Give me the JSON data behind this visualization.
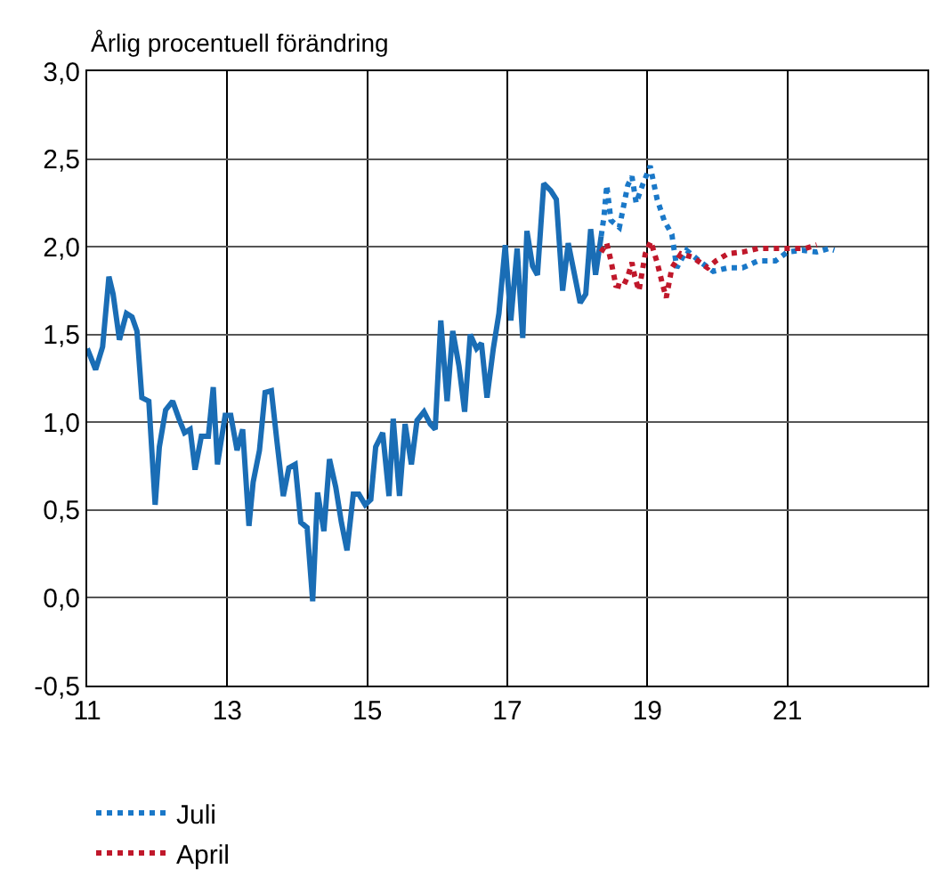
{
  "chart_data": {
    "type": "line",
    "subtitle": "Årlig procentuell förändring",
    "xlim": [
      11,
      23
    ],
    "xticks": [
      11,
      13,
      15,
      17,
      19,
      21
    ],
    "ylim": [
      -0.5,
      3.0
    ],
    "yticks": [
      {
        "value": -0.5,
        "label": "-0,5"
      },
      {
        "value": 0,
        "label": "0,0"
      },
      {
        "value": 0.5,
        "label": "0,5"
      },
      {
        "value": 1,
        "label": "1,0"
      },
      {
        "value": 1.5,
        "label": "1,5"
      },
      {
        "value": 2,
        "label": "2,0"
      },
      {
        "value": 2.5,
        "label": "2,5"
      },
      {
        "value": 3,
        "label": "3,0"
      }
    ],
    "grid": true,
    "legend": "bottom left",
    "marker": "none",
    "series": [
      {
        "color": "#1a6db5",
        "line_style": "solid",
        "x": [
          11.0,
          11.12,
          11.22,
          11.31,
          11.37,
          11.46,
          11.56,
          11.64,
          11.71,
          11.78,
          11.88,
          11.97,
          12.03,
          12.12,
          12.22,
          12.31,
          12.39,
          12.47,
          12.54,
          12.63,
          12.73,
          12.8,
          12.86,
          12.97,
          13.05,
          13.14,
          13.22,
          13.31,
          13.37,
          13.46,
          13.54,
          13.63,
          13.71,
          13.8,
          13.88,
          13.97,
          14.05,
          14.14,
          14.22,
          14.29,
          14.38,
          14.46,
          14.55,
          14.63,
          14.71,
          14.8,
          14.88,
          14.97,
          15.05,
          15.12,
          15.22,
          15.31,
          15.37,
          15.46,
          15.54,
          15.63,
          15.71,
          15.81,
          15.9,
          15.97,
          16.05,
          16.14,
          16.22,
          16.31,
          16.39,
          16.47,
          16.56,
          16.63,
          16.71,
          16.8,
          16.88,
          16.97,
          17.05,
          17.14,
          17.22,
          17.28,
          17.36,
          17.43,
          17.52,
          17.62,
          17.7,
          17.79,
          17.87,
          17.96,
          18.04,
          18.12,
          18.19,
          18.26,
          18.34
        ],
        "values": [
          1.42,
          1.3,
          1.43,
          1.83,
          1.73,
          1.47,
          1.62,
          1.6,
          1.52,
          1.14,
          1.12,
          0.53,
          0.86,
          1.07,
          1.12,
          1.02,
          0.94,
          0.96,
          0.73,
          0.92,
          0.92,
          1.2,
          0.76,
          1.04,
          1.04,
          0.84,
          0.96,
          0.41,
          0.66,
          0.84,
          1.17,
          1.18,
          0.89,
          0.58,
          0.74,
          0.76,
          0.43,
          0.4,
          -0.02,
          0.6,
          0.38,
          0.79,
          0.63,
          0.43,
          0.27,
          0.59,
          0.59,
          0.53,
          0.56,
          0.86,
          0.94,
          0.58,
          1.02,
          0.58,
          0.99,
          0.76,
          1.01,
          1.06,
          0.99,
          0.96,
          1.58,
          1.12,
          1.52,
          1.32,
          1.06,
          1.5,
          1.42,
          1.45,
          1.14,
          1.42,
          1.62,
          2.01,
          1.58,
          1.99,
          1.48,
          2.09,
          1.89,
          1.84,
          2.36,
          2.32,
          2.27,
          1.75,
          2.02,
          1.84,
          1.68,
          1.73,
          2.1,
          1.84,
          2.06
        ]
      },
      {
        "name": "Juli",
        "color": "#1a78c8",
        "line_style": "dotted",
        "x": [
          18.34,
          18.38,
          18.42,
          18.48,
          18.6,
          18.72,
          18.78,
          18.84,
          18.93,
          19.04,
          19.14,
          19.24,
          19.35,
          19.42,
          19.56,
          19.77,
          19.94,
          20.15,
          20.36,
          20.58,
          20.83,
          21.0,
          21.21,
          21.42,
          21.59,
          21.67
        ],
        "values": [
          2.06,
          2.17,
          2.35,
          2.15,
          2.11,
          2.35,
          2.4,
          2.25,
          2.35,
          2.46,
          2.27,
          2.15,
          2.07,
          1.88,
          1.98,
          1.91,
          1.86,
          1.88,
          1.88,
          1.92,
          1.92,
          1.97,
          1.98,
          1.97,
          1.99,
          1.98
        ]
      },
      {
        "name": "April",
        "color": "#c0182b",
        "line_style": "dotted",
        "x": [
          18.34,
          18.42,
          18.48,
          18.55,
          18.65,
          18.72,
          18.78,
          18.82,
          18.88,
          18.97,
          19.05,
          19.14,
          19.22,
          19.27,
          19.35,
          19.48,
          19.65,
          19.86,
          19.98,
          20.15,
          20.36,
          20.58,
          20.83,
          21.08,
          21.25,
          21.42
        ],
        "values": [
          1.97,
          2.02,
          1.92,
          1.78,
          1.77,
          1.83,
          1.91,
          1.83,
          1.75,
          1.96,
          2.03,
          1.91,
          1.78,
          1.71,
          1.88,
          1.96,
          1.94,
          1.88,
          1.92,
          1.96,
          1.97,
          1.99,
          1.99,
          1.99,
          1.99,
          2.01
        ]
      }
    ]
  }
}
